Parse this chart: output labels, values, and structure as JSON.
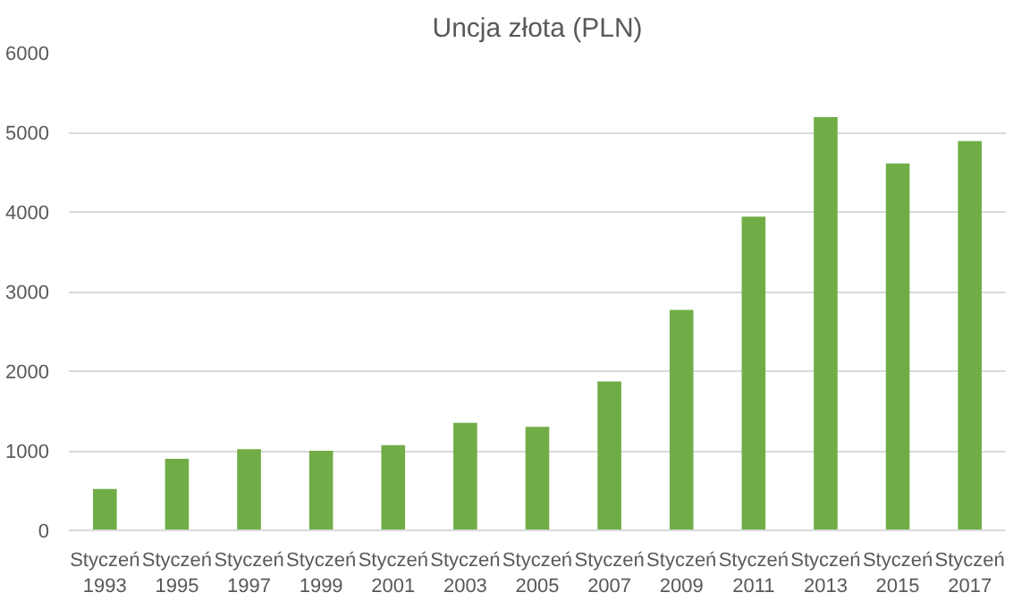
{
  "chart_data": {
    "type": "bar",
    "title": "Uncja złota (PLN)",
    "categories": [
      "Styczeń\n1993",
      "Styczeń\n1995",
      "Styczeń\n1997",
      "Styczeń\n1999",
      "Styczeń\n2001",
      "Styczeń\n2003",
      "Styczeń\n2005",
      "Styczeń\n2007",
      "Styczeń\n2009",
      "Styczeń\n2011",
      "Styczeń\n2013",
      "Styczeń\n2015",
      "Styczeń\n2017"
    ],
    "values": [
      520,
      900,
      1020,
      1000,
      1070,
      1350,
      1300,
      1870,
      2770,
      3940,
      5190,
      4610,
      4890
    ],
    "color": "#70ad47",
    "ylim": [
      0,
      6000
    ],
    "yticks": [
      0,
      1000,
      2000,
      3000,
      4000,
      5000,
      6000
    ],
    "grid": "y"
  }
}
